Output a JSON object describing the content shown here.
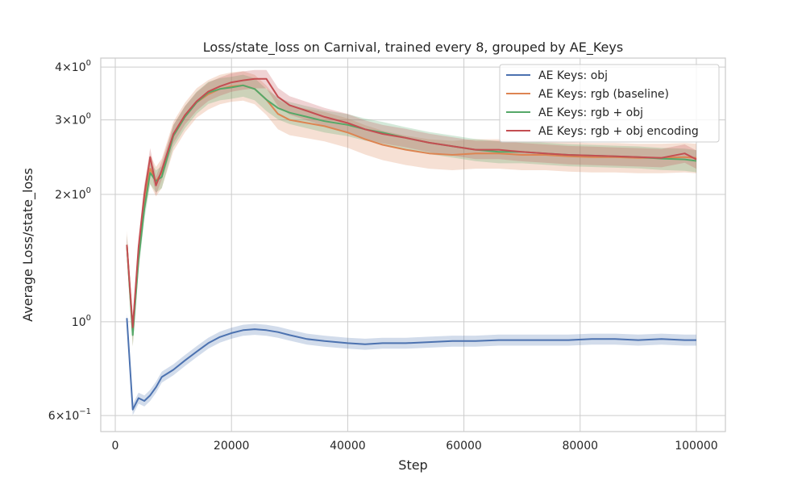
{
  "chart_data": {
    "type": "line",
    "title": "Loss/state_loss on Carnival, trained every 8, grouped by AE_Keys",
    "xlabel": "Step",
    "ylabel": "Average Loss/state_loss",
    "yscale": "log",
    "xlim": [
      -2500,
      105000
    ],
    "ylim": [
      0.55,
      4.2
    ],
    "x_ticks": [
      0,
      20000,
      40000,
      60000,
      80000,
      100000
    ],
    "x_tick_labels": [
      "0",
      "20000",
      "40000",
      "60000",
      "80000",
      "100000"
    ],
    "y_major_ticks": [
      0.6,
      1,
      2,
      3,
      4
    ],
    "y_major_tick_labels": [
      {
        "base": "6",
        "exp": "−1",
        "value": 0.6
      },
      {
        "base": "",
        "exp": "0",
        "value": 1
      },
      {
        "base": "2",
        "exp": "0",
        "value": 2
      },
      {
        "base": "3",
        "exp": "0",
        "value": 3
      },
      {
        "base": "4",
        "exp": "0",
        "value": 4
      }
    ],
    "grid": true,
    "legend_position": "top-right",
    "series": [
      {
        "name": "AE Keys: obj",
        "color": "#4c72b0",
        "x": [
          2000,
          3000,
          4000,
          5000,
          6000,
          7000,
          8000,
          10000,
          12000,
          14000,
          16000,
          18000,
          20000,
          22000,
          24000,
          26000,
          28000,
          30000,
          33000,
          36000,
          40000,
          43000,
          46000,
          50000,
          54000,
          58000,
          62000,
          66000,
          70000,
          74000,
          78000,
          82000,
          86000,
          90000,
          94000,
          98000,
          100000
        ],
        "y": [
          1.02,
          0.62,
          0.66,
          0.65,
          0.67,
          0.7,
          0.74,
          0.77,
          0.81,
          0.85,
          0.89,
          0.92,
          0.94,
          0.955,
          0.96,
          0.955,
          0.945,
          0.93,
          0.91,
          0.9,
          0.89,
          0.885,
          0.89,
          0.89,
          0.895,
          0.9,
          0.9,
          0.905,
          0.905,
          0.905,
          0.905,
          0.91,
          0.91,
          0.905,
          0.91,
          0.905,
          0.905
        ],
        "band": 0.03
      },
      {
        "name": "AE Keys: rgb (baseline)",
        "color": "#dd8452",
        "x": [
          2000,
          3000,
          4000,
          5000,
          6000,
          7000,
          8000,
          10000,
          12000,
          14000,
          16000,
          18000,
          20000,
          22000,
          24000,
          26000,
          28000,
          30000,
          33000,
          36000,
          40000,
          43000,
          46000,
          50000,
          54000,
          58000,
          62000,
          66000,
          70000,
          74000,
          78000,
          82000,
          86000,
          90000,
          94000,
          98000,
          100000
        ],
        "y": [
          1.52,
          0.95,
          1.45,
          1.95,
          2.3,
          2.15,
          2.25,
          2.75,
          3.05,
          3.3,
          3.45,
          3.55,
          3.6,
          3.62,
          3.55,
          3.35,
          3.1,
          3.0,
          2.95,
          2.9,
          2.8,
          2.7,
          2.62,
          2.55,
          2.5,
          2.48,
          2.5,
          2.5,
          2.48,
          2.48,
          2.46,
          2.45,
          2.45,
          2.44,
          2.44,
          2.45,
          2.44
        ],
        "band": 0.08
      },
      {
        "name": "AE Keys: rgb + obj",
        "color": "#55a868",
        "x": [
          2000,
          3000,
          4000,
          5000,
          6000,
          7000,
          8000,
          10000,
          12000,
          14000,
          16000,
          18000,
          20000,
          22000,
          24000,
          26000,
          28000,
          30000,
          33000,
          36000,
          40000,
          43000,
          46000,
          50000,
          54000,
          58000,
          62000,
          66000,
          70000,
          74000,
          78000,
          82000,
          86000,
          90000,
          94000,
          98000,
          100000
        ],
        "y": [
          1.52,
          0.93,
          1.4,
          1.85,
          2.25,
          2.15,
          2.2,
          2.75,
          3.05,
          3.3,
          3.48,
          3.55,
          3.58,
          3.62,
          3.55,
          3.35,
          3.2,
          3.12,
          3.05,
          2.98,
          2.92,
          2.85,
          2.8,
          2.72,
          2.65,
          2.6,
          2.55,
          2.52,
          2.52,
          2.5,
          2.48,
          2.47,
          2.46,
          2.45,
          2.43,
          2.42,
          2.4
        ],
        "band": 0.06
      },
      {
        "name": "AE Keys: rgb + obj encoding",
        "color": "#c44e52",
        "x": [
          2000,
          3000,
          4000,
          5000,
          6000,
          7000,
          8000,
          10000,
          12000,
          14000,
          16000,
          18000,
          20000,
          22000,
          24000,
          26000,
          28000,
          30000,
          33000,
          36000,
          40000,
          43000,
          46000,
          50000,
          54000,
          58000,
          62000,
          66000,
          70000,
          74000,
          78000,
          82000,
          86000,
          90000,
          94000,
          98000,
          100000
        ],
        "y": [
          1.52,
          0.97,
          1.5,
          2.0,
          2.45,
          2.1,
          2.28,
          2.78,
          3.08,
          3.32,
          3.5,
          3.6,
          3.68,
          3.72,
          3.75,
          3.75,
          3.4,
          3.25,
          3.15,
          3.05,
          2.95,
          2.85,
          2.78,
          2.72,
          2.65,
          2.6,
          2.55,
          2.55,
          2.52,
          2.5,
          2.48,
          2.47,
          2.46,
          2.45,
          2.44,
          2.5,
          2.42
        ],
        "band": 0.05
      }
    ]
  }
}
